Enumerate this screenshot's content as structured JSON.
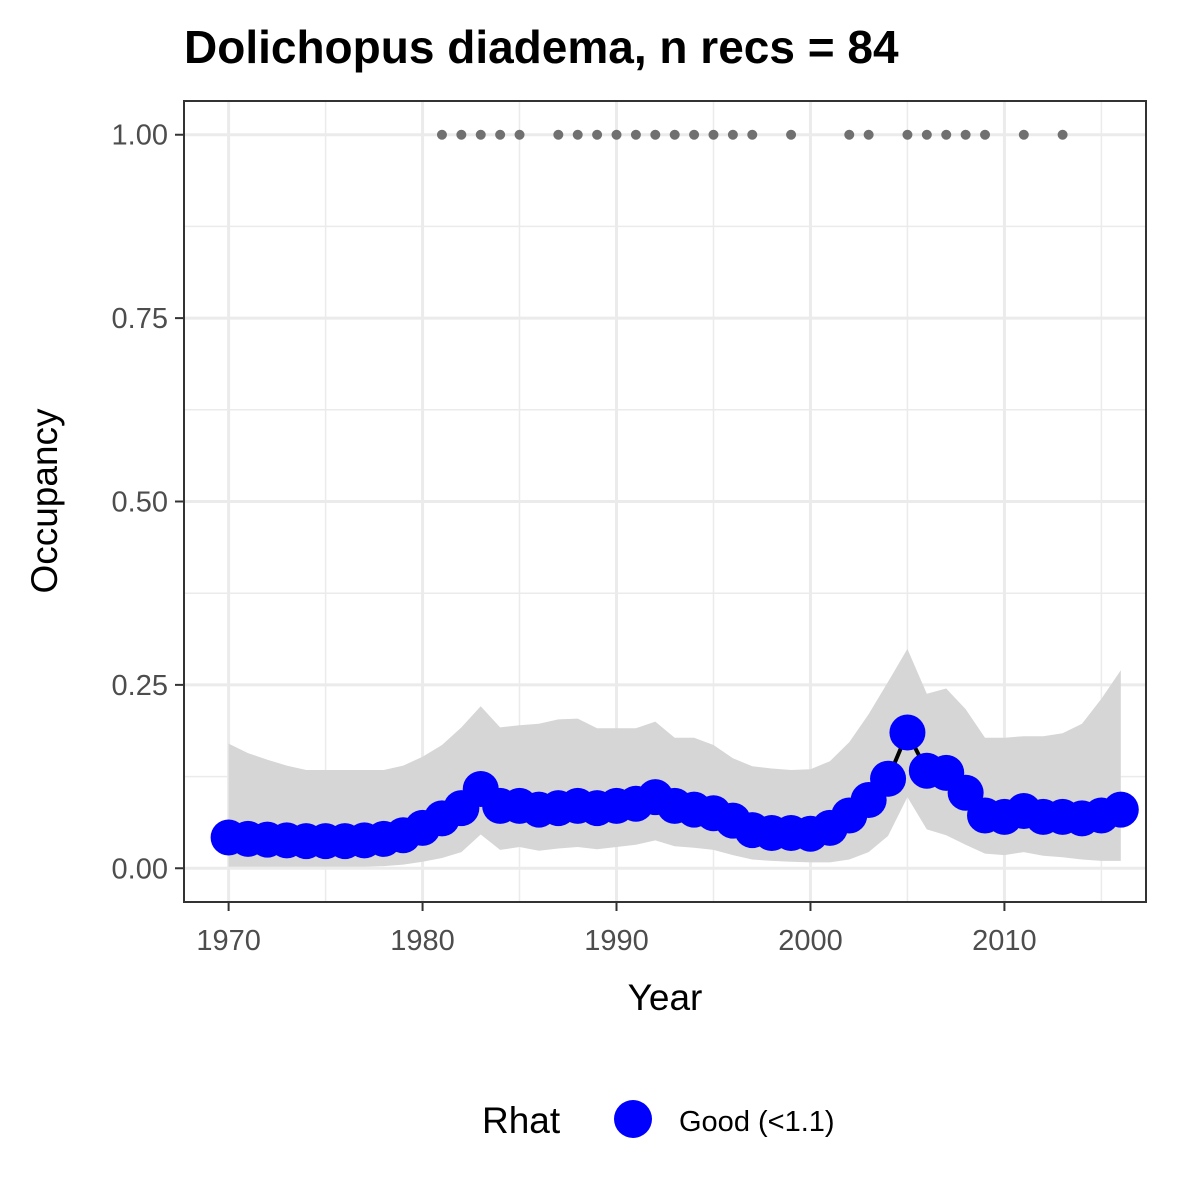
{
  "chart_data": {
    "type": "line",
    "title": "Dolichopus diadema, n recs = 84",
    "xlabel": "Year",
    "ylabel": "Occupancy",
    "xlim": [
      1967.8,
      1917.9
    ],
    "ylim": [
      -0.046,
      1.046
    ],
    "x_ticks": [
      1970,
      1980,
      1990,
      2000,
      2010
    ],
    "x_tick_labels": [
      "1970",
      "1980",
      "1990",
      "2000",
      "2010"
    ],
    "y_ticks": [
      0.0,
      0.25,
      0.5,
      0.75,
      1.0
    ],
    "y_tick_labels": [
      "0.00",
      "0.25",
      "0.50",
      "0.75",
      "1.00"
    ],
    "grid": true,
    "legend": {
      "title": "Rhat",
      "entries": [
        {
          "label": "Good (<1.1)",
          "color": "#0000ff"
        }
      ],
      "position": "bottom"
    },
    "colors": {
      "point": "#0000ff",
      "line": "#000000",
      "ribbon": "#d6d6d6",
      "record_points": "#707070",
      "grid": "#ebebeb",
      "border": "#333333"
    },
    "years": [
      1970,
      1971,
      1972,
      1973,
      1974,
      1975,
      1976,
      1977,
      1978,
      1979,
      1980,
      1981,
      1982,
      1983,
      1984,
      1985,
      1986,
      1987,
      1988,
      1989,
      1990,
      1991,
      1992,
      1993,
      1994,
      1995,
      1996,
      1997,
      1998,
      1999,
      2000,
      2001,
      2002,
      2003,
      2004,
      2005,
      2006,
      2007,
      2008,
      2009,
      2010,
      2011,
      2012,
      2013,
      2014,
      2015,
      2016
    ],
    "occupancy": [
      0.042,
      0.04,
      0.039,
      0.038,
      0.037,
      0.037,
      0.037,
      0.038,
      0.04,
      0.045,
      0.055,
      0.068,
      0.082,
      0.108,
      0.085,
      0.085,
      0.08,
      0.082,
      0.085,
      0.082,
      0.085,
      0.088,
      0.097,
      0.085,
      0.08,
      0.075,
      0.065,
      0.052,
      0.048,
      0.048,
      0.047,
      0.055,
      0.072,
      0.093,
      0.122,
      0.185,
      0.133,
      0.13,
      0.103,
      0.072,
      0.07,
      0.078,
      0.07,
      0.07,
      0.068,
      0.072,
      0.08
    ],
    "ci_upper": [
      0.17,
      0.157,
      0.148,
      0.14,
      0.134,
      0.134,
      0.134,
      0.134,
      0.134,
      0.14,
      0.152,
      0.168,
      0.192,
      0.221,
      0.192,
      0.195,
      0.197,
      0.203,
      0.204,
      0.191,
      0.191,
      0.191,
      0.2,
      0.178,
      0.178,
      0.168,
      0.15,
      0.139,
      0.136,
      0.134,
      0.135,
      0.146,
      0.172,
      0.21,
      0.254,
      0.299,
      0.238,
      0.245,
      0.217,
      0.178,
      0.178,
      0.18,
      0.18,
      0.184,
      0.197,
      0.231,
      0.27
    ],
    "ci_lower": [
      0.002,
      0.002,
      0.002,
      0.002,
      0.002,
      0.002,
      0.002,
      0.002,
      0.003,
      0.005,
      0.009,
      0.014,
      0.022,
      0.046,
      0.025,
      0.029,
      0.024,
      0.027,
      0.029,
      0.026,
      0.029,
      0.032,
      0.038,
      0.03,
      0.028,
      0.025,
      0.018,
      0.012,
      0.01,
      0.009,
      0.008,
      0.008,
      0.012,
      0.022,
      0.044,
      0.097,
      0.053,
      0.045,
      0.032,
      0.02,
      0.018,
      0.022,
      0.017,
      0.015,
      0.012,
      0.01,
      0.01
    ],
    "record_years": [
      1981,
      1982,
      1983,
      1984,
      1985,
      1987,
      1988,
      1989,
      1990,
      1991,
      1992,
      1993,
      1994,
      1995,
      1996,
      1997,
      1999,
      2002,
      2003,
      2005,
      2006,
      2007,
      2008,
      2009,
      2011,
      2013
    ],
    "record_value": 1.0
  }
}
